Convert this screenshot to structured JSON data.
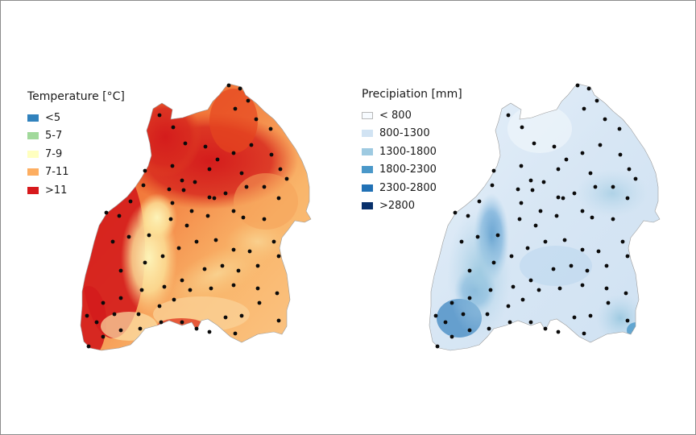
{
  "temperature_legend": {
    "title": "Temperature [°C]",
    "classes": [
      {
        "label": "<5",
        "color": "#3182bd"
      },
      {
        "label": "5-7",
        "color": "#a1d99b"
      },
      {
        "label": "7-9",
        "color": "#ffffbf"
      },
      {
        "label": "7-11",
        "color": "#fdae61"
      },
      {
        "label": ">11",
        "color": "#d7191c"
      }
    ]
  },
  "precipitation_legend": {
    "title": "Precipiation [mm]",
    "classes": [
      {
        "label": "< 800",
        "color": "#f7fbff"
      },
      {
        "label": "800-1300",
        "color": "#d1e3f3"
      },
      {
        "label": "1300-1800",
        "color": "#9ecae1"
      },
      {
        "label": "1800-2300",
        "color": "#4a98c9"
      },
      {
        "label": "2300-2800",
        "color": "#2171b5"
      },
      {
        "label": ">2800",
        "color": "#08306b"
      }
    ]
  }
}
